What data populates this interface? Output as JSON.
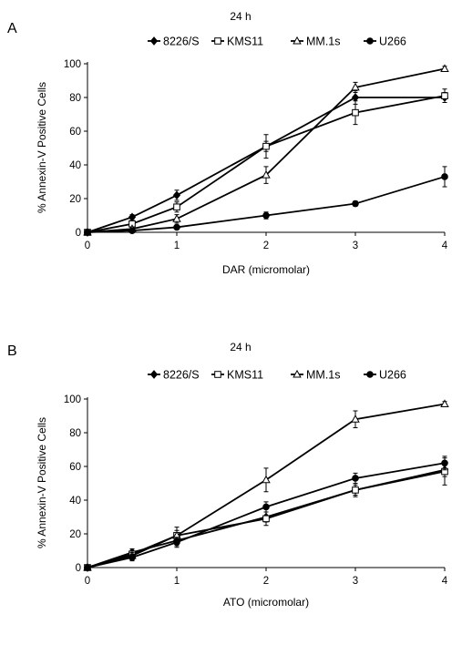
{
  "chart_data": [
    {
      "type": "line",
      "panel_label": "A",
      "title": "24 h",
      "xlabel": "DAR (micromolar)",
      "ylabel": "% Annexin-V Positive Cells",
      "xlim": [
        0,
        4
      ],
      "ylim": [
        0,
        100
      ],
      "xticks": [
        0,
        1,
        2,
        3,
        4
      ],
      "yticks": [
        0,
        20,
        40,
        60,
        80,
        100
      ],
      "x": [
        0,
        0.5,
        1,
        2,
        3,
        4
      ],
      "legend": "top",
      "grid": false,
      "series": [
        {
          "name": "8226/S",
          "marker": "filled-diamond",
          "values": [
            0,
            9,
            22,
            51,
            80,
            80
          ],
          "errors": [
            0,
            1.5,
            3,
            3,
            4,
            3
          ]
        },
        {
          "name": "KMS11",
          "marker": "open-square",
          "values": [
            0,
            5,
            15,
            51,
            71,
            81
          ],
          "errors": [
            0,
            1.5,
            3,
            7,
            7,
            4
          ]
        },
        {
          "name": "MM.1s",
          "marker": "open-triangle",
          "values": [
            0,
            2,
            8,
            34,
            86,
            97
          ],
          "errors": [
            0,
            1,
            2.5,
            5,
            3,
            1.5
          ]
        },
        {
          "name": "U266",
          "marker": "filled-circle",
          "values": [
            0,
            1,
            3,
            10,
            17,
            33
          ],
          "errors": [
            0,
            0.5,
            1,
            2,
            1.5,
            6
          ]
        }
      ]
    },
    {
      "type": "line",
      "panel_label": "B",
      "title": "24 h",
      "xlabel": "ATO (micromolar)",
      "ylabel": "% Annexin-V Positive Cells",
      "xlim": [
        0,
        4
      ],
      "ylim": [
        0,
        100
      ],
      "xticks": [
        0,
        1,
        2,
        3,
        4
      ],
      "yticks": [
        0,
        20,
        40,
        60,
        80,
        100
      ],
      "x": [
        0,
        0.5,
        1,
        2,
        3,
        4
      ],
      "legend": "top",
      "grid": false,
      "series": [
        {
          "name": "8226/S",
          "marker": "filled-diamond",
          "values": [
            0,
            9,
            16,
            30,
            46,
            58
          ],
          "errors": [
            0,
            2,
            3,
            3,
            3,
            4
          ]
        },
        {
          "name": "KMS11",
          "marker": "open-square",
          "values": [
            0,
            8,
            19,
            29,
            46,
            57
          ],
          "errors": [
            0,
            3,
            3,
            4,
            4,
            8
          ]
        },
        {
          "name": "MM.1s",
          "marker": "open-triangle",
          "values": [
            0,
            7,
            19,
            52,
            88,
            97
          ],
          "errors": [
            0,
            2,
            5,
            7,
            5,
            1.5
          ]
        },
        {
          "name": "U266",
          "marker": "filled-circle",
          "values": [
            0,
            6,
            15,
            36,
            53,
            62
          ],
          "errors": [
            0,
            2,
            3,
            3,
            3,
            4
          ]
        }
      ]
    }
  ]
}
